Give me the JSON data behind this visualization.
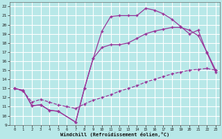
{
  "xlabel": "Windchill (Refroidissement éolien,°C)",
  "bg_color": "#b8e8e8",
  "grid_color": "#ffffff",
  "line_color": "#993399",
  "xlim": [
    -0.5,
    23.5
  ],
  "ylim": [
    9,
    22.5
  ],
  "xticks": [
    0,
    1,
    2,
    3,
    4,
    5,
    6,
    7,
    8,
    9,
    10,
    11,
    12,
    13,
    14,
    15,
    16,
    17,
    18,
    19,
    20,
    21,
    22,
    23
  ],
  "yticks": [
    9,
    10,
    11,
    12,
    13,
    14,
    15,
    16,
    17,
    18,
    19,
    20,
    21,
    22
  ],
  "curve1_x": [
    0,
    1,
    2,
    3,
    4,
    5,
    7,
    8,
    9,
    10,
    11,
    12,
    13,
    14,
    15,
    16,
    17,
    18,
    19,
    20,
    21,
    22,
    23
  ],
  "curve1_y": [
    13,
    12.8,
    11.1,
    11.2,
    10.6,
    10.5,
    9.3,
    13.0,
    16.3,
    19.3,
    20.9,
    21.0,
    21.0,
    21.0,
    21.8,
    21.6,
    21.2,
    20.6,
    19.8,
    19.0,
    19.4,
    16.9,
    14.8
  ],
  "curve2_x": [
    0,
    1,
    2,
    3,
    4,
    5,
    7,
    8,
    9,
    10,
    11,
    12,
    13,
    14,
    15,
    16,
    17,
    18,
    19,
    20,
    21,
    22,
    23
  ],
  "curve2_y": [
    13,
    12.8,
    11.1,
    11.2,
    10.6,
    10.5,
    9.3,
    13.0,
    16.3,
    17.5,
    17.8,
    17.8,
    18.0,
    18.5,
    19.0,
    19.3,
    19.5,
    19.7,
    19.7,
    19.4,
    18.8,
    17.0,
    15.0
  ],
  "curve3_x": [
    0,
    1,
    2,
    3,
    4,
    5,
    6,
    7,
    8,
    9,
    10,
    11,
    12,
    13,
    14,
    15,
    16,
    17,
    18,
    19,
    20,
    21,
    22,
    23
  ],
  "curve3_y": [
    13,
    12.7,
    11.5,
    11.8,
    11.5,
    11.2,
    11.0,
    10.8,
    11.3,
    11.7,
    12.0,
    12.3,
    12.7,
    13.0,
    13.3,
    13.7,
    14.0,
    14.3,
    14.6,
    14.8,
    15.0,
    15.1,
    15.2,
    15.0
  ]
}
